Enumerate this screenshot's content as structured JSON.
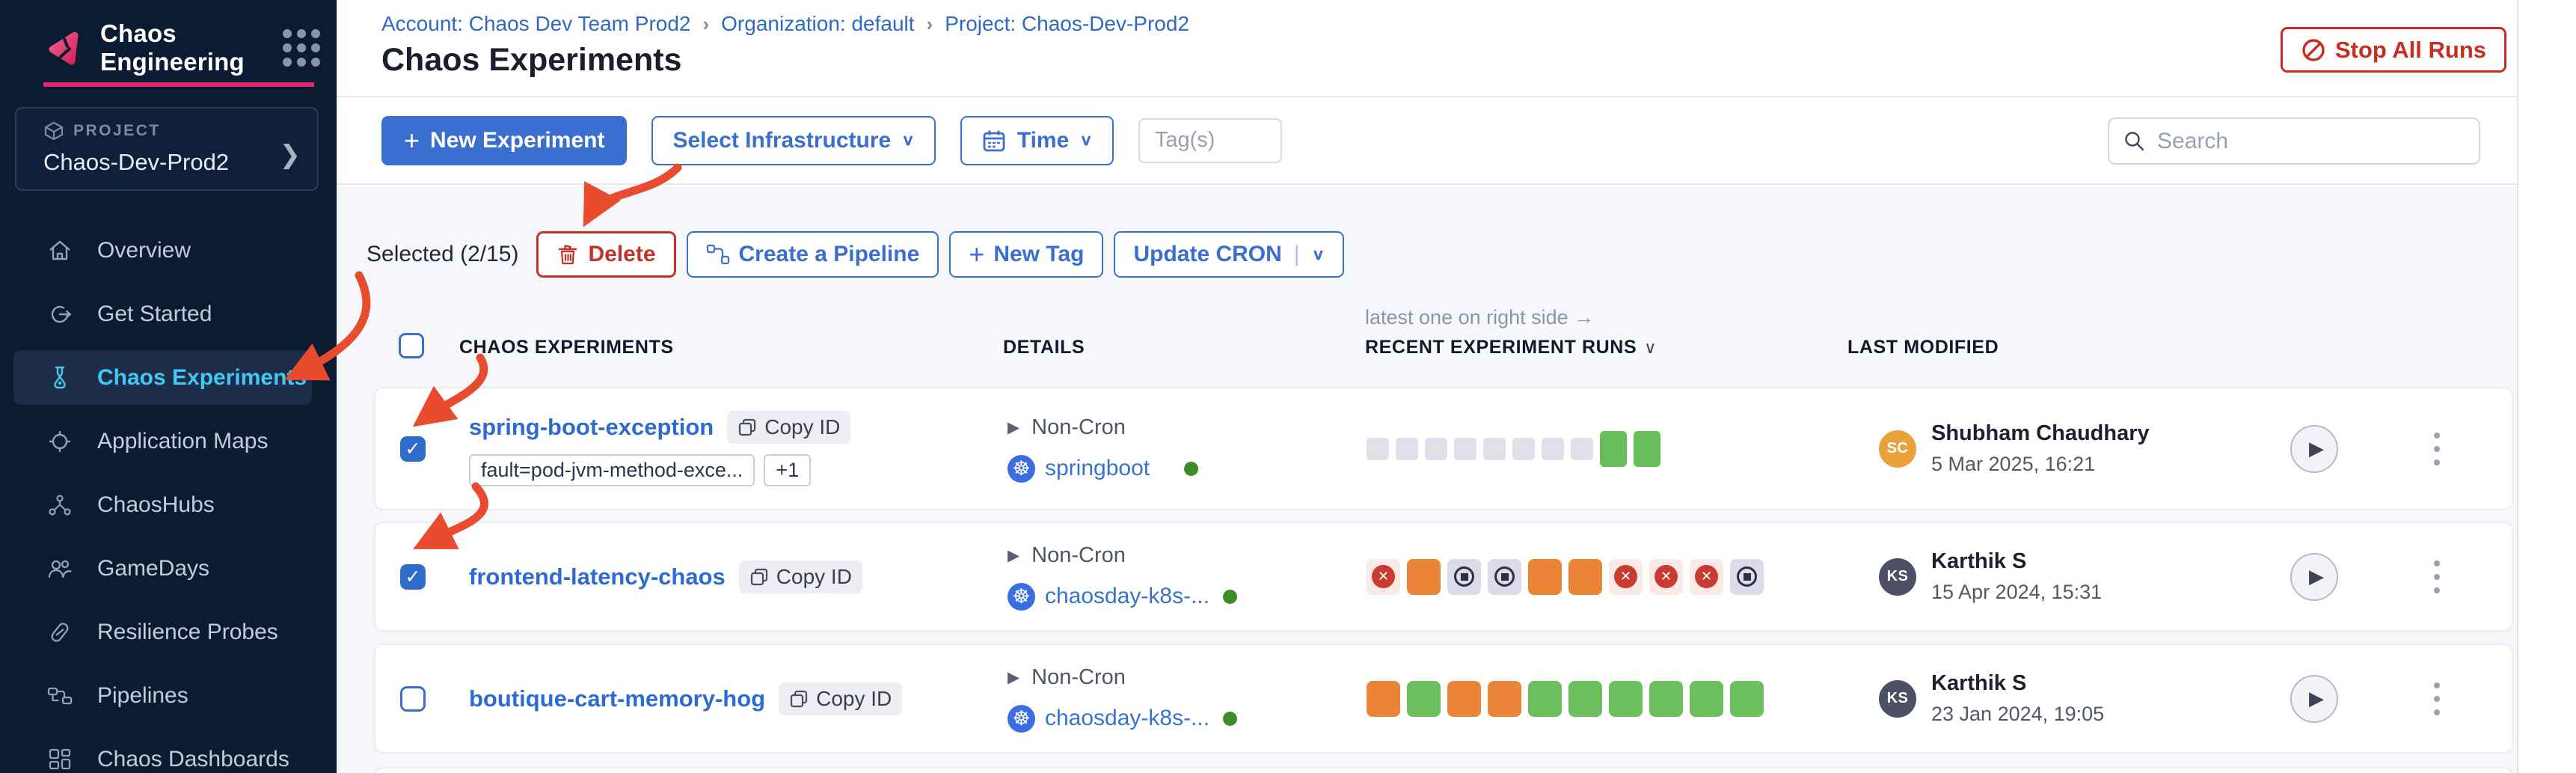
{
  "sidebar": {
    "app_title": "Chaos Engineering",
    "project": {
      "label": "PROJECT",
      "name": "Chaos-Dev-Prod2"
    },
    "nav": [
      {
        "label": "Overview"
      },
      {
        "label": "Get Started"
      },
      {
        "label": "Chaos Experiments",
        "active": true
      },
      {
        "label": "Application Maps"
      },
      {
        "label": "ChaosHubs"
      },
      {
        "label": "GameDays"
      },
      {
        "label": "Resilience Probes"
      },
      {
        "label": "Pipelines"
      },
      {
        "label": "Chaos Dashboards"
      }
    ]
  },
  "breadcrumb": {
    "items": [
      "Account: Chaos Dev Team Prod2",
      "Organization: default",
      "Project: Chaos-Dev-Prod2"
    ],
    "separator": "›"
  },
  "page": {
    "title": "Chaos Experiments"
  },
  "actions": {
    "stop_all_runs": "Stop All Runs",
    "new_experiment": "New Experiment",
    "select_infrastructure": "Select Infrastructure",
    "time": "Time",
    "tags_placeholder": "Tag(s)",
    "search_placeholder": "Search"
  },
  "selection": {
    "summary": "Selected (2/15)",
    "delete": "Delete",
    "create_pipeline": "Create a Pipeline",
    "new_tag": "New Tag",
    "update_cron": "Update CRON"
  },
  "table": {
    "note": "latest one on right side →",
    "columns": {
      "experiments": "CHAOS EXPERIMENTS",
      "details": "DETAILS",
      "runs": "RECENT EXPERIMENT RUNS",
      "modified": "LAST MODIFIED"
    },
    "rows": [
      {
        "name": "spring-boot-exception",
        "checked": true,
        "copy_label": "Copy ID",
        "tags": [
          "fault=pod-jvm-method-exce...",
          "+1"
        ],
        "schedule": "Non-Cron",
        "infra": "springboot",
        "runs": [
          "empty",
          "empty",
          "empty",
          "empty",
          "empty",
          "empty",
          "empty",
          "empty",
          "success",
          "success"
        ],
        "user": {
          "initials": "SC",
          "name": "Shubham Chaudhary",
          "date": "5 Mar 2025, 16:21",
          "color": "#e9a23b"
        }
      },
      {
        "name": "frontend-latency-chaos",
        "checked": true,
        "copy_label": "Copy ID",
        "tags": [],
        "schedule": "Non-Cron",
        "infra": "chaosday-k8s-...",
        "runs": [
          "failed",
          "orange",
          "stopped",
          "stopped",
          "orange",
          "orange",
          "failed",
          "failed",
          "failed",
          "stopped"
        ],
        "user": {
          "initials": "KS",
          "name": "Karthik S",
          "date": "15 Apr 2024, 15:31",
          "color": "#4c5065"
        }
      },
      {
        "name": "boutique-cart-memory-hog",
        "checked": false,
        "copy_label": "Copy ID",
        "tags": [],
        "schedule": "Non-Cron",
        "infra": "chaosday-k8s-...",
        "runs": [
          "orange",
          "green",
          "orange",
          "orange",
          "green",
          "green",
          "green",
          "green",
          "green",
          "green"
        ],
        "user": {
          "initials": "KS",
          "name": "Karthik S",
          "date": "23 Jan 2024, 19:05",
          "color": "#4c5065"
        }
      }
    ]
  },
  "colors": {
    "primary_blue": "#3a6fd0",
    "link_blue": "#2e6bd1",
    "danger_red": "#c92d22",
    "arrow_red": "#e84b2d",
    "brand_pink": "#e5266e",
    "active_cyan": "#42c8f4",
    "run_green": "#6cc05e",
    "run_orange": "#ec8438",
    "run_gray": "#e0e1e8",
    "sidebar_bg": "#0a1b32"
  }
}
